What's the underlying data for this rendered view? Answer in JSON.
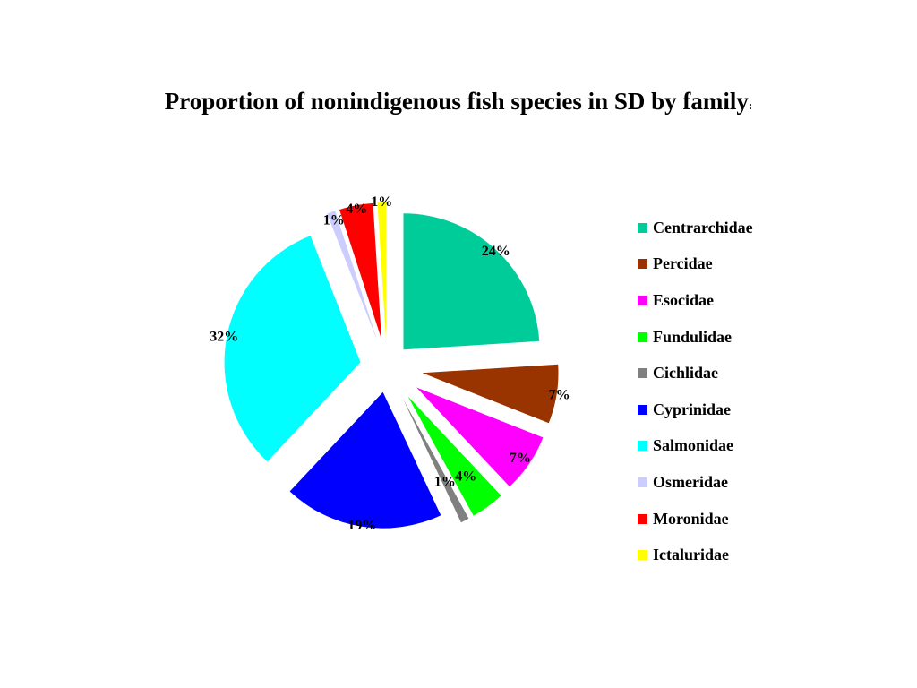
{
  "chart_data": {
    "type": "pie",
    "title": "Proportion of nonindigenous fish species in SD by family",
    "title_suffix": ":",
    "legend_position": "right",
    "slices": [
      {
        "label": "Centrarchidae",
        "value": 24,
        "value_label": "24%",
        "color": "#00CC99"
      },
      {
        "label": "Percidae",
        "value": 7,
        "value_label": "7%",
        "color": "#993300"
      },
      {
        "label": "Esocidae",
        "value": 7,
        "value_label": "7%",
        "color": "#FF00FF"
      },
      {
        "label": "Fundulidae",
        "value": 4,
        "value_label": "4%",
        "color": "#00FF00"
      },
      {
        "label": "Cichlidae",
        "value": 1,
        "value_label": "1%",
        "color": "#808080"
      },
      {
        "label": "Cyprinidae",
        "value": 19,
        "value_label": "19%",
        "color": "#0000FF"
      },
      {
        "label": "Salmonidae",
        "value": 32,
        "value_label": "32%",
        "color": "#00FFFF"
      },
      {
        "label": "Osmeridae",
        "value": 1,
        "value_label": "1%",
        "color": "#CCCCFF"
      },
      {
        "label": "Moronidae",
        "value": 4,
        "value_label": "4%",
        "color": "#FF0000"
      },
      {
        "label": "Ictaluridae",
        "value": 1,
        "value_label": "1%",
        "color": "#FFFF00"
      }
    ]
  }
}
